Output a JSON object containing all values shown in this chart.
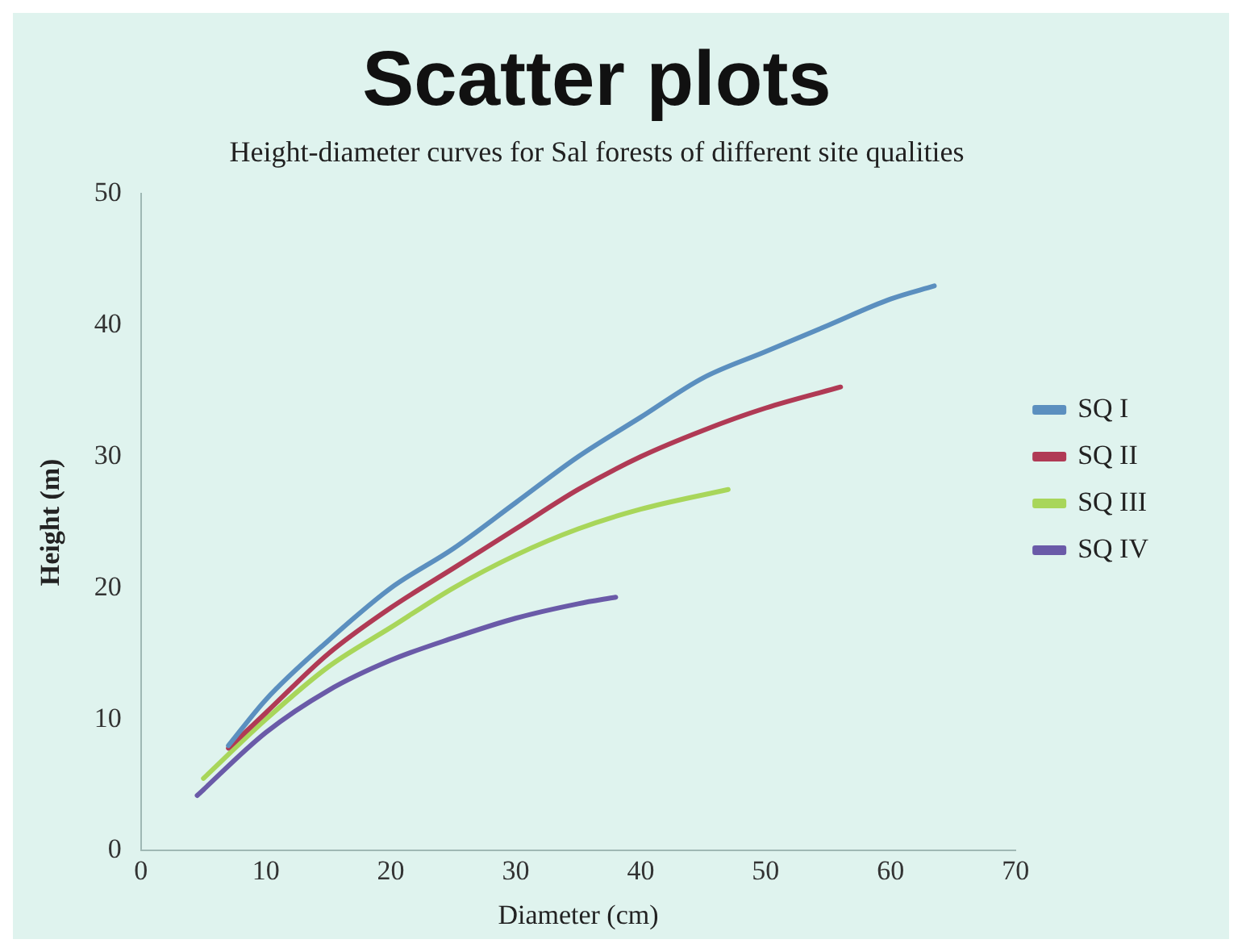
{
  "chart_data": {
    "type": "line",
    "title": "Scatter plots",
    "subtitle": "Height-diameter curves for Sal forests of different site qualities",
    "xlabel": "Diameter (cm)",
    "ylabel": "Height (m)",
    "xlim": [
      0,
      70
    ],
    "xticks": [
      0,
      10,
      20,
      30,
      40,
      50,
      60,
      70
    ],
    "ylim": [
      0,
      50
    ],
    "yticks": [
      0,
      10,
      20,
      30,
      40,
      50
    ],
    "grid": false,
    "legend": "right",
    "marker": "none",
    "line_style": "solid",
    "series": [
      {
        "name": "SQ I",
        "color": "#5b8fbf",
        "x": [
          7,
          10,
          15,
          20,
          25,
          30,
          35,
          40,
          45,
          50,
          55,
          60,
          63.5
        ],
        "values": [
          8,
          11.5,
          16,
          20,
          23,
          26.5,
          30,
          33,
          36,
          38,
          40,
          42,
          43
        ]
      },
      {
        "name": "SQ II",
        "color": "#b03a55",
        "x": [
          7,
          10,
          15,
          20,
          25,
          30,
          35,
          40,
          45,
          50,
          56
        ],
        "values": [
          7.8,
          10.5,
          15,
          18.5,
          21.5,
          24.5,
          27.5,
          30,
          32,
          33.7,
          35.3
        ]
      },
      {
        "name": "SQ III",
        "color": "#a8d65a",
        "x": [
          5,
          10,
          15,
          20,
          25,
          30,
          35,
          40,
          47
        ],
        "values": [
          5.5,
          10,
          14,
          17,
          20,
          22.5,
          24.5,
          26,
          27.5
        ]
      },
      {
        "name": "SQ IV",
        "color": "#6a5aa8",
        "x": [
          4.5,
          10,
          15,
          20,
          25,
          30,
          35,
          38
        ],
        "values": [
          4.2,
          9,
          12.2,
          14.5,
          16.2,
          17.7,
          18.8,
          19.3
        ]
      }
    ]
  }
}
